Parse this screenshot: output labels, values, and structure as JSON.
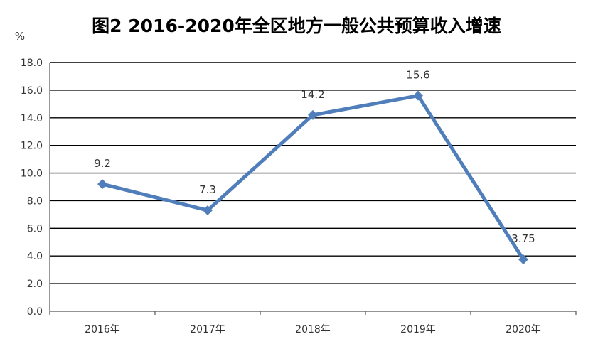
{
  "chart_data": {
    "type": "line",
    "title": "图2  2016-2020年全区地方一般公共预算收入增速",
    "unit_label": "%",
    "categories": [
      "2016年",
      "2017年",
      "2018年",
      "2019年",
      "2020年"
    ],
    "series": [
      {
        "values": [
          9.2,
          7.3,
          14.2,
          15.6,
          3.75
        ],
        "labels": [
          "9.2",
          "7.3",
          "14.2",
          "15.6",
          "3.75"
        ],
        "color": "#4F7EBA",
        "marker": "diamond"
      }
    ],
    "ylim": [
      0,
      18
    ],
    "yticks": [
      "0.0",
      "2.0",
      "4.0",
      "6.0",
      "8.0",
      "10.0",
      "12.0",
      "14.0",
      "16.0",
      "18.0"
    ],
    "grid": true,
    "legend": "none"
  }
}
